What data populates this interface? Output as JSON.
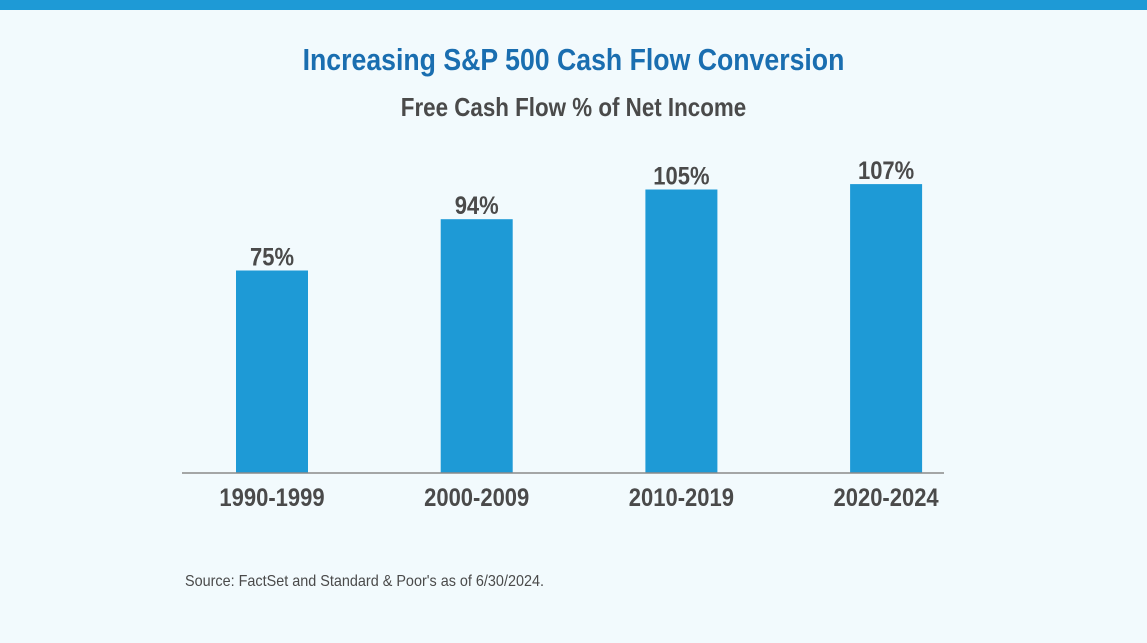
{
  "chart_data": {
    "type": "bar",
    "title": "Increasing S&P 500 Cash Flow Conversion",
    "subtitle": "Free Cash Flow % of Net Income",
    "categories": [
      "1990-1999",
      "2000-2009",
      "2010-2019",
      "2020-2024"
    ],
    "values": [
      75,
      94,
      105,
      107
    ],
    "data_labels": [
      "75%",
      "94%",
      "105%",
      "107%"
    ],
    "xlabel": "",
    "ylabel": "",
    "grid": false,
    "bar_color": "#1e9ad6",
    "title_color": "#1a6eb0",
    "text_color": "#4a4a4a"
  },
  "source": "Source: FactSet and Standard & Poor's as of 6/30/2024."
}
